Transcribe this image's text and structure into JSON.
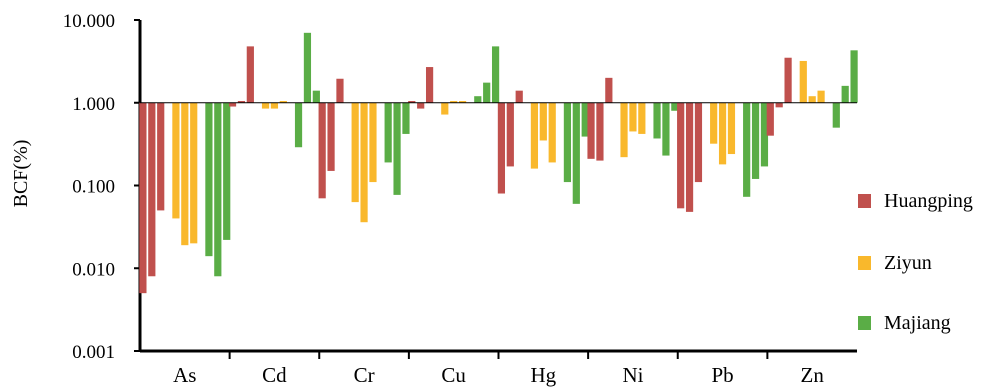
{
  "chart_data": {
    "type": "bar",
    "title": "",
    "xlabel": "",
    "ylabel": "BCF(%)",
    "y_scale": "log",
    "ylim": [
      0.001,
      10
    ],
    "y_ticks": [
      "10.000",
      "1.000",
      "0.100",
      "0.010",
      "0.001"
    ],
    "y_tick_values": [
      10,
      1,
      0.1,
      0.01,
      0.001
    ],
    "baseline": 1,
    "categories": [
      "As",
      "Cd",
      "Cr",
      "Cu",
      "Hg",
      "Ni",
      "Pb",
      "Zn"
    ],
    "series": [
      {
        "name": "Huangping",
        "color": "#c0504d",
        "values": [
          [
            0.005,
            0.008,
            0.05
          ],
          [
            0.9,
            1.05,
            4.8
          ],
          [
            0.07,
            0.15,
            1.95
          ],
          [
            1.05,
            0.85,
            2.7
          ],
          [
            0.08,
            0.17,
            1.4
          ],
          [
            0.21,
            0.2,
            2.0
          ],
          [
            0.053,
            0.048,
            0.11
          ],
          [
            0.4,
            0.88,
            3.5
          ]
        ]
      },
      {
        "name": "Ziyun",
        "color": "#f9b82c",
        "values": [
          [
            0.04,
            0.019,
            0.02
          ],
          [
            0.85,
            0.85,
            1.05
          ],
          [
            0.063,
            0.036,
            0.11
          ],
          [
            0.72,
            1.05,
            1.05
          ],
          [
            0.16,
            0.35,
            0.19
          ],
          [
            0.22,
            0.45,
            0.42
          ],
          [
            0.32,
            0.18,
            0.24
          ],
          [
            3.2,
            1.2,
            1.4
          ]
        ]
      },
      {
        "name": "Majiang",
        "color": "#5aad46",
        "values": [
          [
            0.014,
            0.008,
            0.022
          ],
          [
            0.29,
            7.0,
            1.4
          ],
          [
            0.19,
            0.077,
            0.42
          ],
          [
            1.2,
            1.75,
            4.8
          ],
          [
            0.11,
            0.06,
            0.39
          ],
          [
            0.37,
            0.23,
            0.8
          ],
          [
            0.073,
            0.12,
            0.17
          ],
          [
            0.5,
            1.6,
            4.3
          ]
        ]
      }
    ],
    "legend": {
      "position": "right",
      "entries": [
        "Huangping",
        "Ziyun",
        "Majiang"
      ]
    },
    "grid": false
  }
}
